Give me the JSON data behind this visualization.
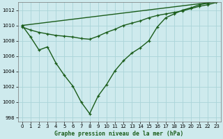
{
  "title": "Graphe pression niveau de la mer (hPa)",
  "bg_color": "#ceeaed",
  "grid_color": "#aad4d8",
  "line_color": "#1a5c1a",
  "xlim": [
    -0.5,
    23.5
  ],
  "ylim": [
    997.5,
    1013.0
  ],
  "yticks": [
    998,
    1000,
    1002,
    1004,
    1006,
    1008,
    1010,
    1012
  ],
  "xticks": [
    0,
    1,
    2,
    3,
    4,
    5,
    6,
    7,
    8,
    9,
    10,
    11,
    12,
    13,
    14,
    15,
    16,
    17,
    18,
    19,
    20,
    21,
    22,
    23
  ],
  "series1_x": [
    0,
    1,
    2,
    3,
    4,
    5,
    6,
    7,
    8,
    9,
    10,
    11,
    12,
    13,
    14,
    15,
    16,
    17,
    18,
    19,
    20,
    21,
    22,
    23
  ],
  "series1_y": [
    1010.0,
    1008.5,
    1006.8,
    1007.2,
    1005.1,
    1003.5,
    1002.1,
    1000.0,
    998.5,
    1000.8,
    1002.3,
    1004.1,
    1005.4,
    1006.4,
    1007.1,
    1008.0,
    1009.8,
    1011.0,
    1011.5,
    1012.0,
    1012.3,
    1012.7,
    1012.9,
    1013.1
  ],
  "series2_x": [
    0,
    1,
    2,
    3,
    4,
    5,
    6,
    7,
    8,
    9,
    10,
    11,
    12,
    13,
    14,
    15,
    16,
    17,
    18,
    19,
    20,
    21,
    22,
    23
  ],
  "series2_y": [
    1009.8,
    1009.4,
    1009.1,
    1008.9,
    1008.7,
    1008.6,
    1008.5,
    1008.3,
    1008.2,
    1008.6,
    1009.1,
    1009.5,
    1010.0,
    1010.3,
    1010.6,
    1011.0,
    1011.3,
    1011.5,
    1011.7,
    1011.9,
    1012.2,
    1012.5,
    1012.7,
    1013.0
  ],
  "series3_x": [
    0,
    23
  ],
  "series3_y": [
    1010.0,
    1013.1
  ],
  "tick_fontsize": 5.0,
  "xlabel_fontsize": 5.8
}
